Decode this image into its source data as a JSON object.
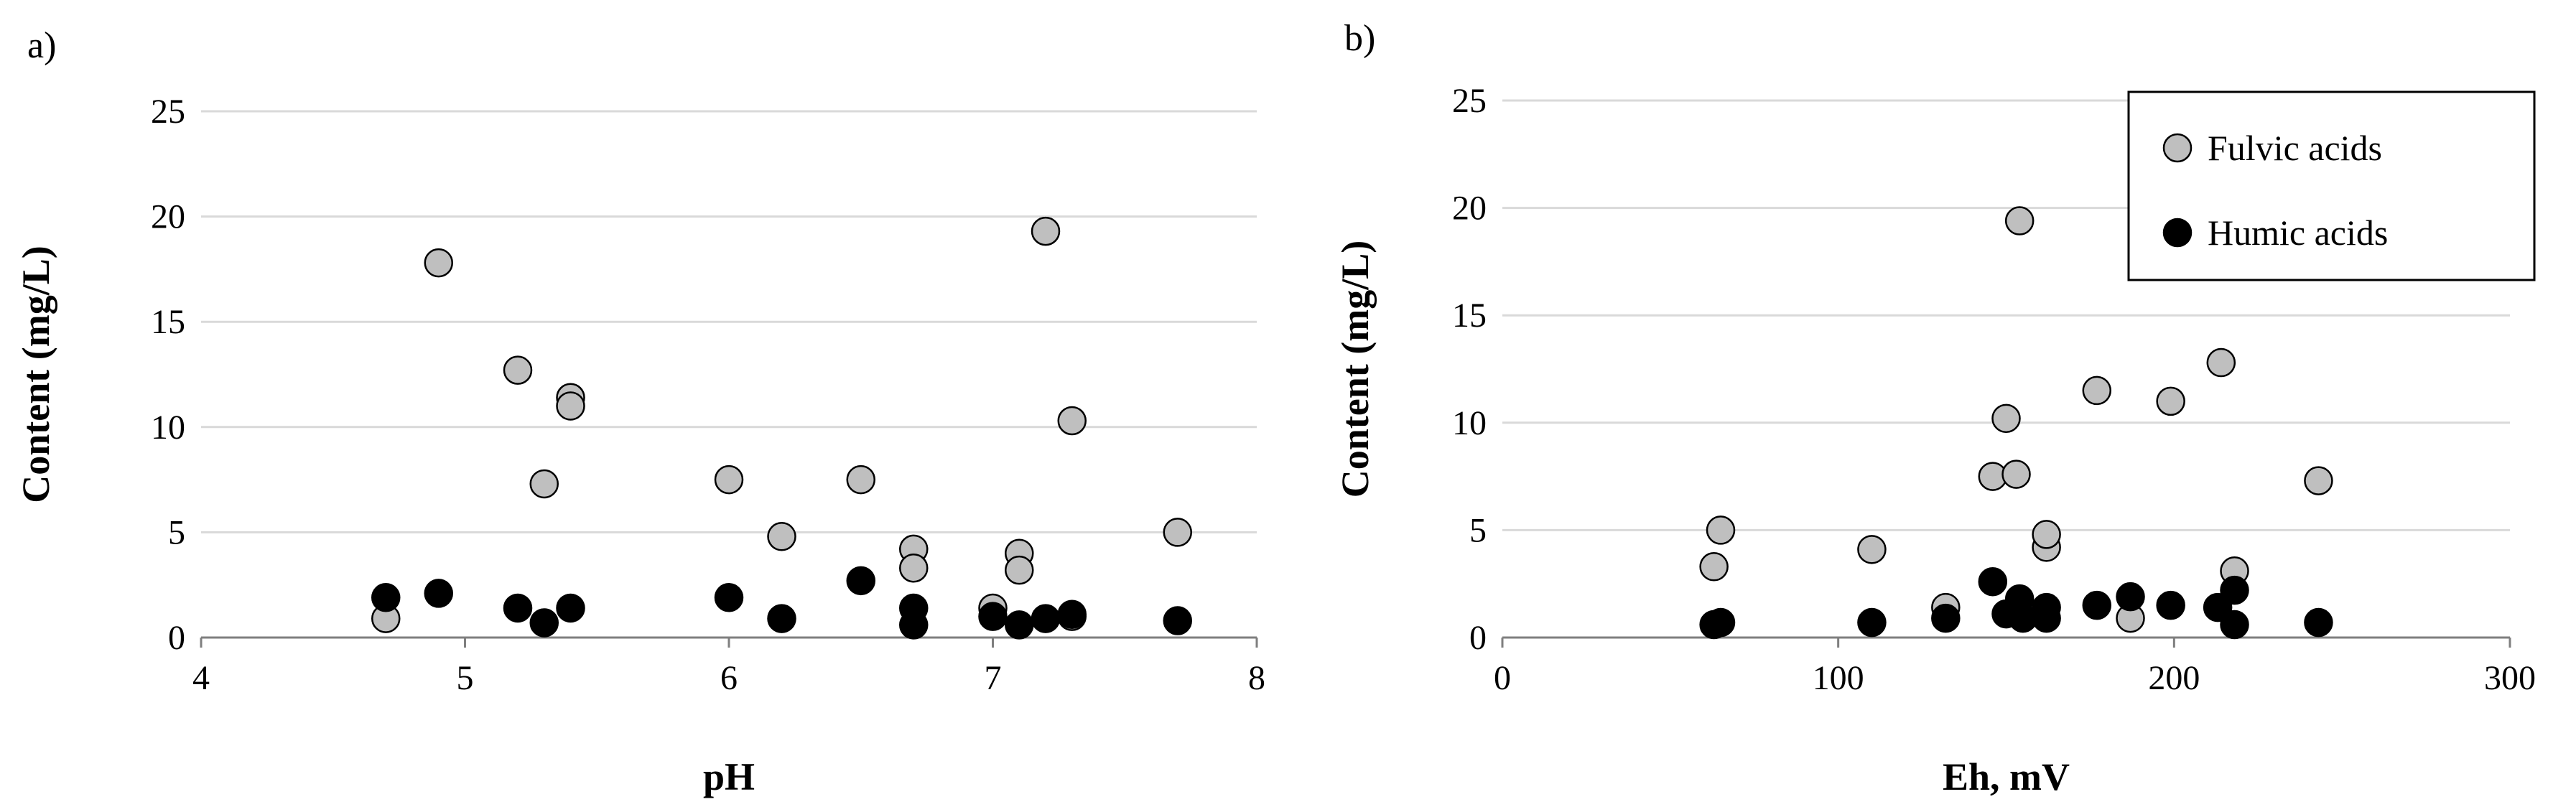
{
  "chart_data": [
    {
      "type": "scatter",
      "panel_label": "a)",
      "title": "",
      "xlabel": "pH",
      "ylabel": "Content  (mg/L)",
      "xlim": [
        4,
        8
      ],
      "ylim": [
        0,
        25
      ],
      "xticks": [
        "4",
        "5",
        "6",
        "7",
        "8"
      ],
      "yticks": [
        "0",
        "5",
        "10",
        "15",
        "20",
        "25"
      ],
      "grid": "horizontal",
      "legend": "none",
      "series": [
        {
          "name": "Fulvic acids",
          "color": "#bfbfbf",
          "points": [
            [
              4.7,
              0.9
            ],
            [
              4.9,
              17.8
            ],
            [
              5.2,
              12.7
            ],
            [
              5.3,
              7.3
            ],
            [
              5.4,
              11.4
            ],
            [
              5.4,
              11.0
            ],
            [
              6.0,
              7.5
            ],
            [
              6.2,
              4.8
            ],
            [
              6.5,
              7.5
            ],
            [
              6.7,
              4.2
            ],
            [
              6.7,
              3.3
            ],
            [
              7.0,
              1.4
            ],
            [
              7.1,
              4.0
            ],
            [
              7.1,
              3.2
            ],
            [
              7.2,
              19.3
            ],
            [
              7.3,
              10.3
            ],
            [
              7.3,
              1.0
            ],
            [
              7.7,
              5.0
            ]
          ]
        },
        {
          "name": "Humic acids",
          "color": "#000000",
          "points": [
            [
              4.7,
              1.9
            ],
            [
              4.9,
              2.1
            ],
            [
              5.2,
              1.4
            ],
            [
              5.3,
              0.7
            ],
            [
              5.4,
              1.4
            ],
            [
              6.0,
              1.9
            ],
            [
              6.2,
              0.9
            ],
            [
              6.5,
              2.7
            ],
            [
              6.7,
              1.4
            ],
            [
              6.7,
              0.6
            ],
            [
              7.0,
              1.0
            ],
            [
              7.1,
              0.6
            ],
            [
              7.2,
              0.9
            ],
            [
              7.3,
              1.1
            ],
            [
              7.7,
              0.8
            ]
          ]
        }
      ]
    },
    {
      "type": "scatter",
      "panel_label": "b)",
      "title": "",
      "xlabel": "Eh, mV",
      "ylabel": "Content (mg/L)",
      "xlim": [
        0,
        300
      ],
      "ylim": [
        0,
        25
      ],
      "xticks": [
        "0",
        "100",
        "200",
        "300"
      ],
      "yticks": [
        "0",
        "5",
        "10",
        "15",
        "20",
        "25"
      ],
      "grid": "horizontal",
      "legend": "top-right",
      "series": [
        {
          "name": "Fulvic acids",
          "color": "#bfbfbf",
          "points": [
            [
              63,
              3.3
            ],
            [
              65,
              5.0
            ],
            [
              110,
              4.1
            ],
            [
              132,
              1.4
            ],
            [
              146,
              7.5
            ],
            [
              150,
              10.2
            ],
            [
              153,
              7.6
            ],
            [
              154,
              19.4
            ],
            [
              162,
              4.2
            ],
            [
              162,
              4.8
            ],
            [
              177,
              11.5
            ],
            [
              187,
              0.9
            ],
            [
              199,
              11.0
            ],
            [
              214,
              12.8
            ],
            [
              218,
              3.1
            ],
            [
              243,
              7.3
            ]
          ]
        },
        {
          "name": "Humic acids",
          "color": "#000000",
          "points": [
            [
              63,
              0.6
            ],
            [
              65,
              0.7
            ],
            [
              110,
              0.7
            ],
            [
              132,
              0.9
            ],
            [
              146,
              2.6
            ],
            [
              150,
              1.1
            ],
            [
              154,
              1.8
            ],
            [
              155,
              0.9
            ],
            [
              162,
              1.4
            ],
            [
              162,
              0.9
            ],
            [
              177,
              1.5
            ],
            [
              187,
              1.9
            ],
            [
              199,
              1.5
            ],
            [
              213,
              1.4
            ],
            [
              218,
              2.2
            ],
            [
              218,
              0.6
            ],
            [
              243,
              0.7
            ]
          ]
        }
      ]
    }
  ]
}
